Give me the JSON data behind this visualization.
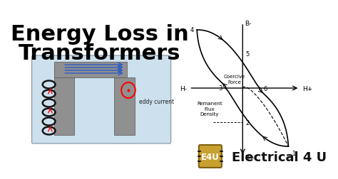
{
  "title_line1": "Energy Loss in",
  "title_line2": "Transformers",
  "title_fontsize": 22,
  "bg_color": "#ffffff",
  "text_color": "#000000",
  "eddy_label": "eddy current",
  "remanent_label": "Remanent\nFlux\nDensity",
  "coercive_label": "Coercive\nForce",
  "electrical4u_text": "Electrical 4 U",
  "e4u_box_color": "#c8a030",
  "logo_text": "E4U",
  "transformer_bg": "#cce0ee",
  "core_color": "#909090"
}
